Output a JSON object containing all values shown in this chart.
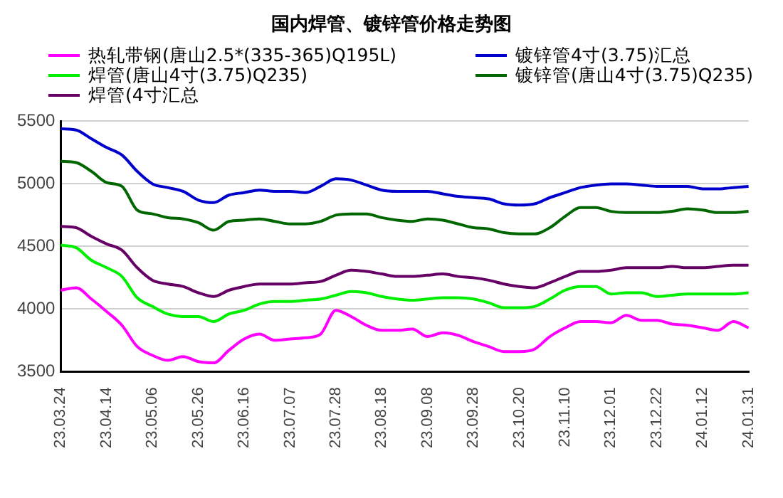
{
  "chart_data": {
    "type": "line",
    "title": "国内焊管、镀锌管价格走势图",
    "categories": [
      "23.03.24",
      null,
      null,
      "23.04.14",
      null,
      null,
      "23.05.06",
      null,
      null,
      "23.05.26",
      null,
      null,
      "23.06.16",
      null,
      null,
      "23.07.07",
      null,
      null,
      "23.07.28",
      null,
      null,
      "23.08.18",
      null,
      null,
      "23.09.08",
      null,
      null,
      "23.09.28",
      null,
      null,
      "23.10.20",
      null,
      null,
      "23.11.10",
      null,
      null,
      "23.12.01",
      null,
      null,
      "23.12.22",
      null,
      null,
      "24.01.12",
      null,
      null,
      "24.01.31"
    ],
    "series": [
      {
        "name": "热轧带钢(唐山2.5*(335-365)Q195L)",
        "color": "#ff00ff",
        "values": [
          4150,
          4170,
          4080,
          3980,
          3870,
          3700,
          3630,
          3590,
          3620,
          3580,
          3570,
          3670,
          3760,
          3800,
          3750,
          3760,
          3770,
          3800,
          3990,
          3940,
          3870,
          3830,
          3830,
          3840,
          3780,
          3810,
          3790,
          3740,
          3700,
          3660,
          3660,
          3680,
          3780,
          3850,
          3900,
          3900,
          3890,
          3950,
          3910,
          3910,
          3880,
          3870,
          3850,
          3830,
          3900,
          3850
        ]
      },
      {
        "name": "镀锌管4寸(3.75)汇总",
        "color": "#0000cc",
        "values": [
          5440,
          5430,
          5360,
          5290,
          5230,
          5100,
          5000,
          4970,
          4940,
          4870,
          4850,
          4910,
          4930,
          4950,
          4940,
          4940,
          4930,
          4980,
          5040,
          5030,
          4990,
          4950,
          4940,
          4940,
          4940,
          4920,
          4900,
          4890,
          4880,
          4840,
          4830,
          4840,
          4890,
          4930,
          4970,
          4990,
          5000,
          5000,
          4990,
          4980,
          4980,
          4980,
          4960,
          4960,
          4970,
          4980
        ]
      },
      {
        "name": "焊管(唐山4寸(3.75)Q235)",
        "color": "#00ee00",
        "values": [
          4510,
          4490,
          4390,
          4330,
          4260,
          4090,
          4020,
          3960,
          3940,
          3940,
          3900,
          3960,
          3990,
          4040,
          4060,
          4060,
          4070,
          4080,
          4110,
          4140,
          4130,
          4100,
          4080,
          4070,
          4080,
          4090,
          4090,
          4080,
          4050,
          4010,
          4010,
          4020,
          4080,
          4150,
          4180,
          4180,
          4120,
          4130,
          4130,
          4100,
          4110,
          4120,
          4120,
          4120,
          4120,
          4130
        ]
      },
      {
        "name": "镀锌管(唐山4寸(3.75)Q235)",
        "color": "#006600",
        "values": [
          5180,
          5170,
          5100,
          5010,
          4980,
          4790,
          4760,
          4730,
          4720,
          4690,
          4630,
          4700,
          4710,
          4720,
          4700,
          4680,
          4680,
          4700,
          4750,
          4760,
          4760,
          4730,
          4710,
          4700,
          4720,
          4710,
          4680,
          4650,
          4640,
          4610,
          4600,
          4600,
          4650,
          4740,
          4810,
          4810,
          4780,
          4770,
          4770,
          4770,
          4780,
          4800,
          4790,
          4770,
          4770,
          4780
        ]
      },
      {
        "name": "焊管(4寸汇总",
        "color": "#660066",
        "values": [
          4660,
          4650,
          4580,
          4520,
          4470,
          4330,
          4230,
          4200,
          4180,
          4130,
          4100,
          4150,
          4180,
          4200,
          4200,
          4200,
          4210,
          4220,
          4270,
          4310,
          4300,
          4280,
          4260,
          4260,
          4270,
          4280,
          4260,
          4250,
          4230,
          4200,
          4180,
          4170,
          4210,
          4260,
          4300,
          4300,
          4310,
          4330,
          4330,
          4330,
          4340,
          4330,
          4330,
          4340,
          4350,
          4350
        ]
      }
    ],
    "ylim": [
      3500,
      5500
    ],
    "yticks": [
      3500,
      4000,
      4500,
      5000,
      5500
    ],
    "grid": "y",
    "legend": "top",
    "marker": "none",
    "line_style": "solid"
  }
}
